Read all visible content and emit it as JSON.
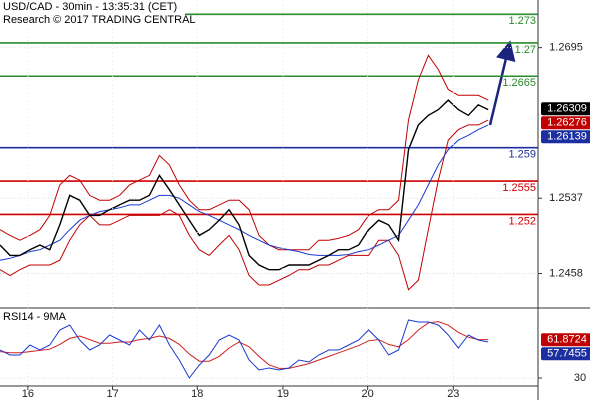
{
  "chart_data": [
    {
      "type": "line",
      "title": "USD/CAD - 30min - 13:35:31 (CET)",
      "subtitle": "Research © 2017 TRADING CENTRAL",
      "x": [
        0,
        1,
        2,
        3,
        4,
        5,
        6,
        7,
        8,
        9,
        10,
        11,
        12,
        13,
        14,
        15,
        16,
        17,
        18,
        19,
        20,
        21,
        22,
        23,
        24,
        25,
        26,
        27,
        28,
        29,
        30,
        31,
        32,
        33,
        34,
        35,
        36,
        37,
        38,
        39,
        40,
        41,
        42,
        43,
        44,
        45,
        46,
        47,
        48,
        49
      ],
      "xlim": [
        0,
        54
      ],
      "ylim": [
        1.2425,
        1.2745
      ],
      "yticks": [
        1.2695,
        1.2537,
        1.2458
      ],
      "grid": true,
      "series": [
        {
          "color": "#c00000",
          "values": [
            1.2504,
            1.2498,
            1.2493,
            1.2498,
            1.2504,
            1.2519,
            1.2551,
            1.2561,
            1.2556,
            1.254,
            1.2535,
            1.2535,
            1.254,
            1.2551,
            1.2556,
            1.2561,
            1.2582,
            1.2572,
            1.2551,
            1.2535,
            1.2525,
            1.2525,
            1.253,
            1.2535,
            1.2535,
            1.2525,
            1.2498,
            1.2488,
            1.2483,
            1.2483,
            1.2483,
            1.2483,
            1.2493,
            1.2493,
            1.2495,
            1.2498,
            1.2504,
            1.2519,
            1.2525,
            1.2525,
            1.2535,
            1.2619,
            1.2661,
            1.2687,
            1.2672,
            1.2651,
            1.2645,
            1.2645,
            1.2645,
            1.264
          ]
        },
        {
          "color": "#c00000",
          "values": [
            1.2462,
            1.2456,
            1.2462,
            1.2467,
            1.2467,
            1.2467,
            1.2472,
            1.2493,
            1.2509,
            1.2519,
            1.2509,
            1.2509,
            1.2514,
            1.2519,
            1.2519,
            1.2519,
            1.2519,
            1.2525,
            1.2519,
            1.2498,
            1.2483,
            1.2477,
            1.2488,
            1.2498,
            1.2483,
            1.2456,
            1.2446,
            1.2446,
            1.2451,
            1.2456,
            1.2462,
            1.2462,
            1.2467,
            1.2467,
            1.2472,
            1.2477,
            1.2477,
            1.2477,
            1.2493,
            1.2493,
            1.2477,
            1.2441,
            1.2451,
            1.2504,
            1.2556,
            1.2598,
            1.2609,
            1.2614,
            1.2614,
            1.2619
          ]
        },
        {
          "color": "#1a3ad0",
          "values": [
            1.2472,
            1.2474,
            1.2477,
            1.2481,
            1.2483,
            1.2488,
            1.2493,
            1.2504,
            1.2514,
            1.2519,
            1.2523,
            1.2525,
            1.2527,
            1.253,
            1.253,
            1.2535,
            1.254,
            1.254,
            1.2537,
            1.253,
            1.2523,
            1.2519,
            1.2514,
            1.2509,
            1.2504,
            1.2498,
            1.2493,
            1.2488,
            1.2485,
            1.2483,
            1.2481,
            1.2478,
            1.2477,
            1.2477,
            1.2477,
            1.2478,
            1.2481,
            1.2483,
            1.2488,
            1.2493,
            1.2498,
            1.2514,
            1.253,
            1.2551,
            1.2572,
            1.2588,
            1.2598,
            1.2603,
            1.2609,
            1.2614
          ]
        },
        {
          "color": "#000000",
          "values": [
            1.2488,
            1.2477,
            1.2477,
            1.2483,
            1.2488,
            1.2483,
            1.2509,
            1.254,
            1.2535,
            1.2519,
            1.2519,
            1.2525,
            1.253,
            1.2535,
            1.2535,
            1.254,
            1.2561,
            1.2546,
            1.253,
            1.2514,
            1.2498,
            1.2504,
            1.2514,
            1.2525,
            1.2509,
            1.2477,
            1.2467,
            1.2462,
            1.2462,
            1.2467,
            1.2467,
            1.2467,
            1.2472,
            1.2477,
            1.2483,
            1.2483,
            1.2488,
            1.2504,
            1.2514,
            1.2509,
            1.2493,
            1.2588,
            1.2614,
            1.2624,
            1.263,
            1.264,
            1.263,
            1.2624,
            1.2635,
            1.263
          ]
        }
      ],
      "levels": [
        {
          "value": 1.273,
          "color": "#2b8a2b"
        },
        {
          "value": 1.27,
          "color": "#2b8a2b"
        },
        {
          "value": 1.2665,
          "color": "#2b8a2b"
        },
        {
          "value": 1.259,
          "color": "#1c2fa0"
        },
        {
          "value": 1.2555,
          "color": "#d00000"
        },
        {
          "value": 1.252,
          "color": "#d00000"
        }
      ],
      "tags": [
        {
          "value": 1.26309,
          "color": "#000000"
        },
        {
          "value": 1.26276,
          "color": "#c00000"
        },
        {
          "value": 1.26139,
          "color": "#1c2fa0"
        }
      ]
    },
    {
      "type": "line",
      "title": "RSI14 - 9MA",
      "x": [
        0,
        1,
        2,
        3,
        4,
        5,
        6,
        7,
        8,
        9,
        10,
        11,
        12,
        13,
        14,
        15,
        16,
        17,
        18,
        19,
        20,
        21,
        22,
        23,
        24,
        25,
        26,
        27,
        28,
        29,
        30,
        31,
        32,
        33,
        34,
        35,
        36,
        37,
        38,
        39,
        40,
        41,
        42,
        43,
        44,
        45,
        46,
        47,
        48,
        49
      ],
      "xlim": [
        0,
        54
      ],
      "xticks": [
        {
          "value": 2.8,
          "label": "16"
        },
        {
          "value": 11.3,
          "label": "17"
        },
        {
          "value": 19.8,
          "label": "18"
        },
        {
          "value": 28.4,
          "label": "19"
        },
        {
          "value": 36.9,
          "label": "20"
        },
        {
          "value": 45.5,
          "label": "23"
        }
      ],
      "ylim": [
        25,
        85
      ],
      "yticks": [
        30
      ],
      "grid": true,
      "series": [
        {
          "color": "#d02020",
          "values": [
            52,
            51,
            51,
            52,
            53,
            54,
            58,
            63,
            65,
            62,
            59,
            59,
            60,
            60,
            62,
            63,
            65,
            63,
            58,
            50,
            44,
            44,
            48,
            55,
            60,
            56,
            48,
            41,
            38,
            38,
            40,
            42,
            45,
            48,
            51,
            54,
            57,
            61,
            62,
            58,
            56,
            62,
            70,
            76,
            77,
            74,
            68,
            64,
            62,
            62
          ]
        },
        {
          "color": "#1a3ad0",
          "values": [
            53.3,
            49.2,
            49.2,
            57.5,
            53.3,
            57.5,
            70,
            74.2,
            61.7,
            53.3,
            57.5,
            65.8,
            61.7,
            57.5,
            70,
            61.7,
            74.2,
            57.5,
            45,
            30,
            40.8,
            49.2,
            61.7,
            65.8,
            61.7,
            45,
            36.7,
            38.3,
            36.7,
            38.3,
            45,
            43.3,
            49.2,
            53.3,
            53.3,
            57.5,
            61.7,
            70,
            61.7,
            49.2,
            53.3,
            78.3,
            76.7,
            76.7,
            74.2,
            65.8,
            55,
            65.8,
            61.7,
            60
          ]
        }
      ],
      "tags": [
        {
          "value": 61.8724,
          "color": "#c00000"
        },
        {
          "value": 57.7455,
          "color": "#1c2fa0"
        }
      ]
    }
  ]
}
